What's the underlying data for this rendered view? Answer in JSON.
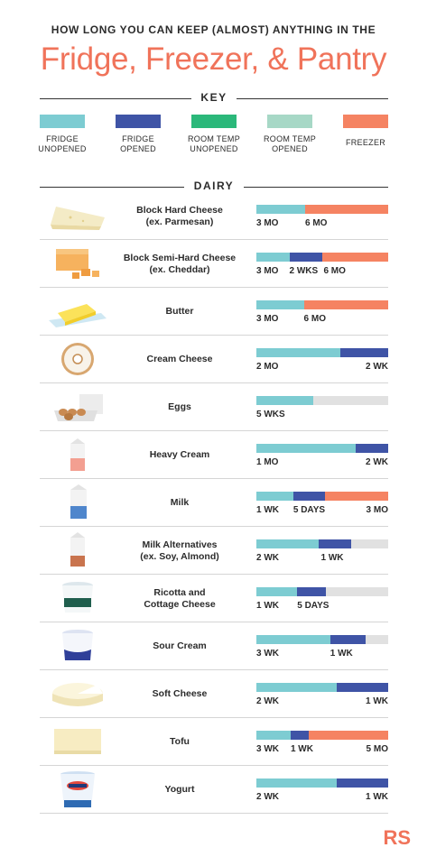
{
  "header": {
    "kicker": "HOW LONG YOU CAN KEEP (ALMOST) ANYTHING IN THE",
    "title": "Fridge, Freezer, & Pantry"
  },
  "key": {
    "heading": "KEY",
    "items": [
      {
        "line1": "FRIDGE",
        "line2": "UNOPENED",
        "color": "#7dccd2"
      },
      {
        "line1": "FRIDGE",
        "line2": "OPENED",
        "color": "#3f54a6"
      },
      {
        "line1": "ROOM TEMP",
        "line2": "UNOPENED",
        "color": "#2bb87a"
      },
      {
        "line1": "ROOM TEMP",
        "line2": "OPENED",
        "color": "#a7d8c6"
      },
      {
        "line1": "FREEZER",
        "line2": "",
        "color": "#f58362"
      }
    ]
  },
  "section": {
    "heading": "DAIRY"
  },
  "colors": {
    "fridge_unopened": "#7dccd2",
    "fridge_opened": "#3f54a6",
    "freezer": "#f58362",
    "empty_track": "#e1e1e1",
    "title": "#f0735a"
  },
  "items": [
    {
      "line1": "Block Hard Cheese",
      "line2": "(ex. Parmesan)",
      "icon": "parmesan-wedge-icon",
      "segments": [
        {
          "kind": "fridge_unopened",
          "fraction": 0.37
        },
        {
          "kind": "freezer",
          "fraction": 0.63
        }
      ],
      "labels": [
        {
          "text": "3 MO",
          "pos": 0.0
        },
        {
          "text": "6 MO",
          "pos": 0.37
        }
      ]
    },
    {
      "line1": "Block Semi-Hard Cheese",
      "line2": "(ex. Cheddar)",
      "icon": "cheddar-block-icon",
      "segments": [
        {
          "kind": "fridge_unopened",
          "fraction": 0.25
        },
        {
          "kind": "fridge_opened",
          "fraction": 0.25
        },
        {
          "kind": "freezer",
          "fraction": 0.5
        }
      ],
      "labels": [
        {
          "text": "3 MO",
          "pos": 0.0
        },
        {
          "text": "2 WKS",
          "pos": 0.25
        },
        {
          "text": "6 MO",
          "pos": 0.51
        }
      ]
    },
    {
      "line1": "Butter",
      "line2": "",
      "icon": "butter-stick-icon",
      "segments": [
        {
          "kind": "fridge_unopened",
          "fraction": 0.36
        },
        {
          "kind": "freezer",
          "fraction": 0.64
        }
      ],
      "labels": [
        {
          "text": "3 MO",
          "pos": 0.0
        },
        {
          "text": "6 MO",
          "pos": 0.36
        }
      ]
    },
    {
      "line1": "Cream Cheese",
      "line2": "",
      "icon": "cream-cheese-bagel-icon",
      "segments": [
        {
          "kind": "fridge_unopened",
          "fraction": 0.64
        },
        {
          "kind": "fridge_opened",
          "fraction": 0.36
        }
      ],
      "labels": [
        {
          "text": "2 MO",
          "pos": 0.0
        },
        {
          "text": "2 WK",
          "pos": 1.0
        }
      ]
    },
    {
      "line1": "Eggs",
      "line2": "",
      "icon": "egg-carton-icon",
      "segments": [
        {
          "kind": "fridge_unopened",
          "fraction": 0.43
        }
      ],
      "labels": [
        {
          "text": "5 WKS",
          "pos": 0.0
        }
      ]
    },
    {
      "line1": "Heavy Cream",
      "line2": "",
      "icon": "cream-carton-icon",
      "segments": [
        {
          "kind": "fridge_unopened",
          "fraction": 0.75
        },
        {
          "kind": "fridge_opened",
          "fraction": 0.25
        }
      ],
      "labels": [
        {
          "text": "1 MO",
          "pos": 0.0
        },
        {
          "text": "2 WK",
          "pos": 1.0
        }
      ]
    },
    {
      "line1": "Milk",
      "line2": "",
      "icon": "milk-carton-icon",
      "segments": [
        {
          "kind": "fridge_unopened",
          "fraction": 0.28
        },
        {
          "kind": "fridge_opened",
          "fraction": 0.24
        },
        {
          "kind": "freezer",
          "fraction": 0.48
        }
      ],
      "labels": [
        {
          "text": "1 WK",
          "pos": 0.0
        },
        {
          "text": "5 DAYS",
          "pos": 0.28
        },
        {
          "text": "3 MO",
          "pos": 1.0
        }
      ]
    },
    {
      "line1": "Milk Alternatives",
      "line2": "(ex. Soy, Almond)",
      "icon": "almond-milk-carton-icon",
      "segments": [
        {
          "kind": "fridge_unopened",
          "fraction": 0.47
        },
        {
          "kind": "fridge_opened",
          "fraction": 0.25
        }
      ],
      "labels": [
        {
          "text": "2 WK",
          "pos": 0.0
        },
        {
          "text": "1 WK",
          "pos": 0.49
        }
      ]
    },
    {
      "line1": "Ricotta and",
      "line2": "Cottage Cheese",
      "icon": "ricotta-tub-icon",
      "segments": [
        {
          "kind": "fridge_unopened",
          "fraction": 0.31
        },
        {
          "kind": "fridge_opened",
          "fraction": 0.22
        }
      ],
      "labels": [
        {
          "text": "1 WK",
          "pos": 0.0
        },
        {
          "text": "5 DAYS",
          "pos": 0.31
        }
      ]
    },
    {
      "line1": "Sour Cream",
      "line2": "",
      "icon": "sour-cream-tub-icon",
      "segments": [
        {
          "kind": "fridge_unopened",
          "fraction": 0.56
        },
        {
          "kind": "fridge_opened",
          "fraction": 0.27
        }
      ],
      "labels": [
        {
          "text": "3 WK",
          "pos": 0.0
        },
        {
          "text": "1 WK",
          "pos": 0.56
        }
      ]
    },
    {
      "line1": "Soft Cheese",
      "line2": "",
      "icon": "soft-cheese-wheel-icon",
      "segments": [
        {
          "kind": "fridge_unopened",
          "fraction": 0.61
        },
        {
          "kind": "fridge_opened",
          "fraction": 0.39
        }
      ],
      "labels": [
        {
          "text": "2 WK",
          "pos": 0.0
        },
        {
          "text": "1 WK",
          "pos": 1.0
        }
      ]
    },
    {
      "line1": "Tofu",
      "line2": "",
      "icon": "tofu-block-icon",
      "segments": [
        {
          "kind": "fridge_unopened",
          "fraction": 0.26
        },
        {
          "kind": "fridge_opened",
          "fraction": 0.14
        },
        {
          "kind": "freezer",
          "fraction": 0.6
        }
      ],
      "labels": [
        {
          "text": "3 WK",
          "pos": 0.0
        },
        {
          "text": "1 WK",
          "pos": 0.26
        },
        {
          "text": "5 MO",
          "pos": 1.0
        }
      ]
    },
    {
      "line1": "Yogurt",
      "line2": "",
      "icon": "yogurt-cup-icon",
      "segments": [
        {
          "kind": "fridge_unopened",
          "fraction": 0.61
        },
        {
          "kind": "fridge_opened",
          "fraction": 0.39
        }
      ],
      "labels": [
        {
          "text": "2 WK",
          "pos": 0.0
        },
        {
          "text": "1 WK",
          "pos": 1.0
        }
      ]
    }
  ],
  "logo": {
    "text": "RS"
  }
}
